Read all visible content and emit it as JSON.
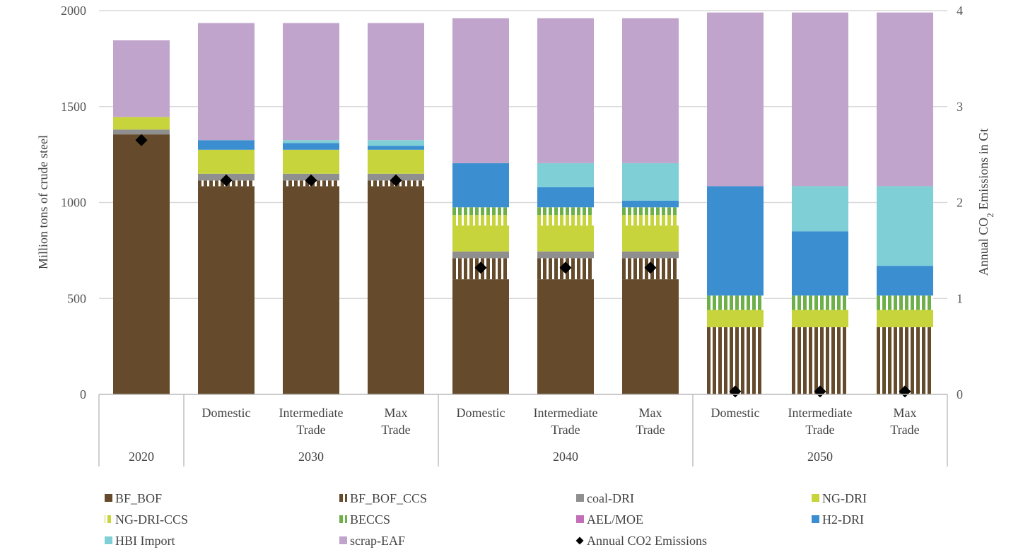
{
  "chart_data": {
    "type": "bar",
    "stacked": true,
    "title": "",
    "ylabel": "Million tons of crude steel",
    "y2label_parts": [
      "Annual CO",
      "2",
      " Emissions in Gt"
    ],
    "ylim": [
      0,
      2000
    ],
    "y2lim": [
      0,
      4
    ],
    "yticks": [
      0,
      500,
      1000,
      1500,
      2000
    ],
    "y2ticks": [
      0,
      1,
      2,
      3,
      4
    ],
    "grid": true,
    "legend_position": "bottom",
    "groups": [
      {
        "label": "2020",
        "categories": [
          ""
        ]
      },
      {
        "label": "2030",
        "categories": [
          "Domestic",
          "Intermediate Trade",
          "Max Trade"
        ]
      },
      {
        "label": "2040",
        "categories": [
          "Domestic",
          "Intermediate Trade",
          "Max Trade"
        ]
      },
      {
        "label": "2050",
        "categories": [
          "Domestic",
          "Intermediate Trade",
          "Max Trade"
        ]
      }
    ],
    "series": [
      {
        "name": "BF_BOF",
        "color": "#654b2b",
        "pattern": "solid",
        "values": [
          1355,
          1085,
          1085,
          1085,
          600,
          600,
          600,
          0,
          0,
          0
        ]
      },
      {
        "name": "BF_BOF_CCS",
        "color": "#654b2b",
        "pattern": "stripes",
        "values": [
          0,
          30,
          30,
          30,
          110,
          110,
          110,
          350,
          350,
          350
        ]
      },
      {
        "name": "coal-DRI",
        "color": "#8f8f8f",
        "pattern": "solid",
        "values": [
          25,
          35,
          35,
          35,
          35,
          35,
          35,
          0,
          0,
          0
        ]
      },
      {
        "name": "NG-DRI",
        "color": "#c8d43c",
        "pattern": "solid",
        "values": [
          65,
          125,
          125,
          125,
          135,
          135,
          135,
          90,
          90,
          90
        ]
      },
      {
        "name": "NG-DRI-CCS",
        "color": "#c8d43c",
        "pattern": "stripes",
        "values": [
          0,
          0,
          0,
          0,
          55,
          55,
          55,
          0,
          0,
          0
        ]
      },
      {
        "name": "BECCS",
        "color": "#6db04a",
        "pattern": "stripes",
        "values": [
          0,
          0,
          0,
          0,
          40,
          40,
          40,
          75,
          75,
          75
        ]
      },
      {
        "name": "AEL/MOE",
        "color": "#c36fb8",
        "pattern": "solid",
        "values": [
          0,
          0,
          0,
          0,
          0,
          0,
          0,
          0,
          0,
          0
        ]
      },
      {
        "name": "H2-DRI",
        "color": "#3b8fd0",
        "pattern": "solid",
        "values": [
          0,
          50,
          35,
          20,
          230,
          105,
          35,
          570,
          335,
          155
        ]
      },
      {
        "name": "HBI Import",
        "color": "#7ecfd6",
        "pattern": "solid",
        "values": [
          0,
          0,
          15,
          30,
          0,
          125,
          195,
          0,
          235,
          415
        ]
      },
      {
        "name": "scrap-EAF",
        "color": "#c0a4cc",
        "pattern": "solid",
        "values": [
          400,
          610,
          610,
          610,
          755,
          755,
          755,
          905,
          905,
          905
        ]
      }
    ],
    "emissions": {
      "name": "Annual CO2 Emissions",
      "color": "#000000",
      "values": [
        2.65,
        2.23,
        2.23,
        2.23,
        1.32,
        1.32,
        1.32,
        0.03,
        0.03,
        0.03
      ]
    },
    "legend": [
      "BF_BOF",
      "BF_BOF_CCS",
      "coal-DRI",
      "NG-DRI",
      "NG-DRI-CCS",
      "BECCS",
      "AEL/MOE",
      "H2-DRI",
      "HBI Import",
      "scrap-EAF",
      "Annual CO2 Emissions"
    ]
  }
}
